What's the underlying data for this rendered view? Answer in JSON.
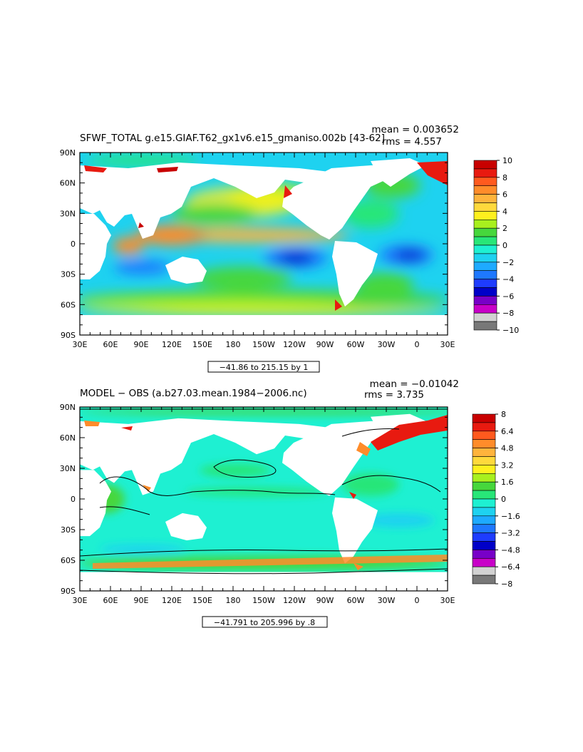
{
  "chart_data": [
    {
      "type": "heatmap",
      "title": "SFWF_TOTAL g.e15.GIAF.T62_gx1v6.e15_gmaniso.002b [43-62]",
      "mean_text": "mean = 0.003652",
      "rms_text": "rms = 4.557",
      "range_text": "−41.86 to 215.15 by 1",
      "x_ticks": [
        "30E",
        "60E",
        "90E",
        "120E",
        "150E",
        "180",
        "150W",
        "120W",
        "90W",
        "60W",
        "30W",
        "0",
        "30E"
      ],
      "y_ticks": [
        "90N",
        "60N",
        "30N",
        "0",
        "30S",
        "60S",
        "90S"
      ],
      "colorbar_labels": [
        "10",
        "8",
        "6",
        "4",
        "2",
        "0",
        "−2",
        "−4",
        "−6",
        "−8",
        "−10"
      ],
      "colorbar_colors": [
        "#c80000",
        "#e81a10",
        "#ff5a1e",
        "#ff8c2a",
        "#ffb43c",
        "#ffd93c",
        "#fff01e",
        "#a8f01e",
        "#46d73c",
        "#28e678",
        "#1ef0d2",
        "#1ed2f0",
        "#1eaaff",
        "#1e78ff",
        "#1e3cff",
        "#0000c8",
        "#7800c8",
        "#c800c8",
        "#d2d2d2",
        "#787878"
      ],
      "features": [
        {
          "name": "west-pacific-warm-pool",
          "lon_center": 150,
          "lat_center": 5,
          "value": 6
        },
        {
          "name": "itcz-band",
          "lon_center": -150,
          "lat_center": 8,
          "value": 5
        },
        {
          "name": "southeast-pacific",
          "lon_center": -110,
          "lat_center": -18,
          "value": -6
        },
        {
          "name": "south-atlantic",
          "lon_center": -15,
          "lat_center": -18,
          "value": -6
        },
        {
          "name": "indian-ocean-south",
          "lon_center": 90,
          "lat_center": -25,
          "value": -4
        },
        {
          "name": "north-pacific",
          "lon_center": 180,
          "lat_center": 40,
          "value": 3
        },
        {
          "name": "southern-ocean",
          "lon_center": 0,
          "lat_center": -55,
          "value": 3
        },
        {
          "name": "arctic-greenland-margin",
          "lon_center": -20,
          "lat_center": 70,
          "value": 9
        }
      ]
    },
    {
      "type": "heatmap",
      "title": "MODEL − OBS (a.b27.03.mean.1984−2006.nc)",
      "mean_text": "mean = −0.01042",
      "rms_text": "rms = 3.735",
      "range_text": "−41.791 to 205.996 by .8",
      "x_ticks": [
        "30E",
        "60E",
        "90E",
        "120E",
        "150E",
        "180",
        "150W",
        "120W",
        "90W",
        "60W",
        "30W",
        "0",
        "30E"
      ],
      "y_ticks": [
        "90N",
        "60N",
        "30N",
        "0",
        "30S",
        "60S",
        "90S"
      ],
      "colorbar_labels": [
        "8",
        "6.4",
        "4.8",
        "3.2",
        "1.6",
        "0",
        "−1.6",
        "−3.2",
        "−4.8",
        "−6.4",
        "−8"
      ],
      "colorbar_colors": [
        "#c80000",
        "#e81a10",
        "#ff5a1e",
        "#ff8c2a",
        "#ffb43c",
        "#ffd93c",
        "#fff01e",
        "#a8f01e",
        "#46d73c",
        "#28e678",
        "#1ef0d2",
        "#1ed2f0",
        "#1eaaff",
        "#1e78ff",
        "#1e3cff",
        "#0000c8",
        "#7800c8",
        "#c800c8",
        "#d2d2d2",
        "#787878"
      ],
      "features": [
        {
          "name": "gulf-stream",
          "lon_center": -65,
          "lat_center": 38,
          "value": 6
        },
        {
          "name": "southern-ocean-band",
          "lon_center": 0,
          "lat_center": -55,
          "value": 2
        },
        {
          "name": "tropical-pacific",
          "lon_center": -150,
          "lat_center": 5,
          "value": 0.5
        },
        {
          "name": "north-atlantic-east-greenland",
          "lon_center": -15,
          "lat_center": 70,
          "value": 7
        }
      ]
    }
  ]
}
